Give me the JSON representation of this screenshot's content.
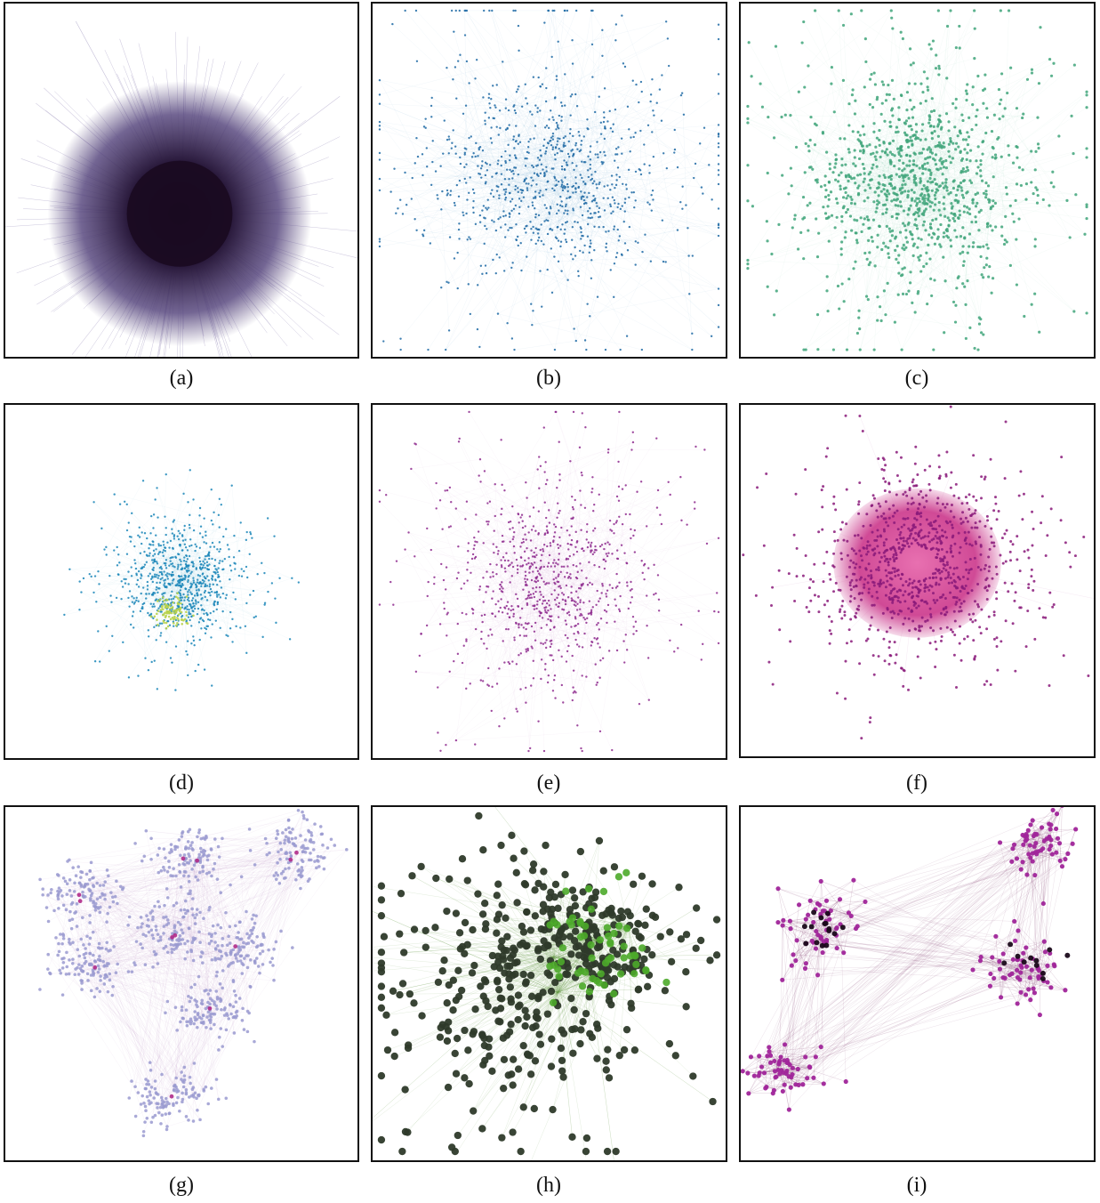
{
  "figure": {
    "panels": [
      {
        "id": "a",
        "label": "(a)",
        "style": "hairball",
        "node_color": "#2a1a3c",
        "edge_color": "#6a5a9a",
        "halo_color": "#5a4a80"
      },
      {
        "id": "b",
        "label": "(b)",
        "style": "spread",
        "node_color": "#1f6aa5",
        "edge_color": "#4a8ec4"
      },
      {
        "id": "c",
        "label": "(c)",
        "style": "dense",
        "node_color": "#3fa57a",
        "edge_color": "#6cc39a"
      },
      {
        "id": "d",
        "label": "(d)",
        "style": "star",
        "node_color": "#1a86b8",
        "edge_color": "#6ab4d4",
        "core_color": "#b8d24a"
      },
      {
        "id": "e",
        "label": "(e)",
        "style": "sparse",
        "node_color": "#8e2a8e",
        "edge_color": "#c58ac5"
      },
      {
        "id": "f",
        "label": "(f)",
        "style": "ring",
        "node_color": "#8a1a7a",
        "edge_color": "#c070b0",
        "core_color": "#d04a96"
      },
      {
        "id": "g",
        "label": "(g)",
        "style": "clusters",
        "node_color": "#9a9ad0",
        "edge_color": "#c090c8",
        "accent_color": "#b02a8a"
      },
      {
        "id": "h",
        "label": "(h)",
        "style": "big",
        "node_color": "#2e3a2a",
        "edge_color": "#6a9a4a",
        "accent_color": "#4caa2a"
      },
      {
        "id": "i",
        "label": "(i)",
        "style": "three",
        "node_color": "#a0259a",
        "edge_color": "#8a4a7a",
        "accent_color": "#1a0a1a"
      }
    ]
  }
}
